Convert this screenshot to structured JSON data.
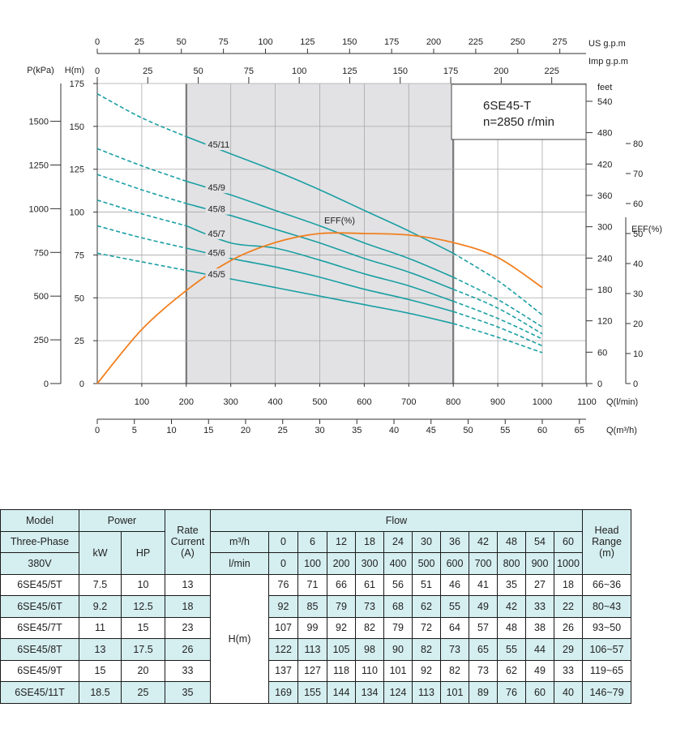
{
  "chart_data": {
    "type": "line",
    "model_label": "6SE45-T",
    "speed_label": "n=2850 r/min",
    "axes": {
      "x_lpm": {
        "range": [
          0,
          1100
        ],
        "ticks": [
          100,
          200,
          300,
          400,
          500,
          600,
          700,
          800,
          900,
          1000,
          1100
        ],
        "unit": "Q(l/min)"
      },
      "x_m3h": {
        "range": [
          0,
          66
        ],
        "ticks": [
          0,
          5,
          10,
          15,
          20,
          25,
          30,
          35,
          40,
          45,
          50,
          55,
          60,
          65
        ],
        "unit": "Q(m³/h)"
      },
      "x_usgpm": {
        "range": [
          0,
          290.6
        ],
        "ticks": [
          0,
          25,
          50,
          75,
          100,
          125,
          150,
          175,
          200,
          225,
          250,
          275
        ],
        "unit": "US  g.p.m"
      },
      "x_impgpm": {
        "range": [
          0,
          242
        ],
        "ticks": [
          0,
          25,
          50,
          75,
          100,
          125,
          150,
          175,
          200,
          225
        ],
        "unit": "Imp  g.p.m"
      },
      "y_head_m": {
        "range": [
          0,
          175
        ],
        "ticks": [
          0,
          25,
          50,
          75,
          100,
          125,
          150,
          175
        ],
        "unit": "H(m)"
      },
      "y_kpa": {
        "range": [
          0,
          1716
        ],
        "ticks": [
          0,
          250,
          500,
          750,
          1000,
          1250,
          1500
        ],
        "unit": "P(kPa)"
      },
      "y_feet": {
        "range": [
          0,
          574
        ],
        "ticks": [
          0,
          60,
          120,
          180,
          240,
          300,
          360,
          420,
          480,
          540
        ],
        "unit": "feet"
      },
      "y_eff": {
        "range": [
          0,
          100
        ],
        "ticks": [
          0,
          10,
          20,
          30,
          40,
          50,
          60,
          70,
          80
        ],
        "unit": "EFF(%)"
      }
    },
    "recommended_range_lpm": [
      200,
      800
    ],
    "series": [
      {
        "name": "45/11",
        "x_lpm": [
          0,
          100,
          200,
          300,
          400,
          500,
          600,
          700,
          800,
          900,
          1000
        ],
        "head_m": [
          169,
          155,
          144,
          134,
          124,
          113,
          101,
          89,
          76,
          60,
          40
        ]
      },
      {
        "name": "45/9",
        "x_lpm": [
          0,
          100,
          200,
          300,
          400,
          500,
          600,
          700,
          800,
          900,
          1000
        ],
        "head_m": [
          137,
          127,
          118,
          110,
          101,
          92,
          82,
          73,
          62,
          49,
          33
        ]
      },
      {
        "name": "45/8",
        "x_lpm": [
          0,
          100,
          200,
          300,
          400,
          500,
          600,
          700,
          800,
          900,
          1000
        ],
        "head_m": [
          122,
          113,
          105,
          98,
          90,
          82,
          73,
          65,
          55,
          44,
          29
        ]
      },
      {
        "name": "45/7",
        "x_lpm": [
          0,
          100,
          200,
          300,
          400,
          500,
          600,
          700,
          800,
          900,
          1000
        ],
        "head_m": [
          107,
          99,
          92,
          82,
          79,
          72,
          64,
          57,
          48,
          38,
          26
        ]
      },
      {
        "name": "45/6",
        "x_lpm": [
          0,
          100,
          200,
          300,
          400,
          500,
          600,
          700,
          800,
          900,
          1000
        ],
        "head_m": [
          92,
          85,
          79,
          73,
          68,
          62,
          55,
          49,
          42,
          33,
          22
        ]
      },
      {
        "name": "45/5",
        "x_lpm": [
          0,
          100,
          200,
          300,
          400,
          500,
          600,
          700,
          800,
          900,
          1000
        ],
        "head_m": [
          76,
          71,
          66,
          61,
          56,
          51,
          46,
          41,
          35,
          27,
          18
        ]
      }
    ],
    "efficiency": {
      "name": "EFF(%)",
      "x_lpm": [
        0,
        100,
        200,
        300,
        400,
        500,
        600,
        700,
        800,
        900,
        1000
      ],
      "eff_pct": [
        0,
        18,
        31,
        41,
        47,
        50,
        50,
        49.5,
        47,
        42,
        32
      ]
    },
    "colors": {
      "head": "#1a9fa3",
      "efficiency": "#f08020",
      "range_shade": "#e2e2e4",
      "grid": "#a8a8a8"
    }
  },
  "table": {
    "headers": {
      "model": "Model",
      "power": "Power",
      "rate_current": "Rate Current (A)",
      "flow": "Flow",
      "head_range": "Head Range (m)",
      "three_phase": "Three-Phase",
      "voltage": "380V",
      "kw": "kW",
      "hp": "HP",
      "m3h": "m³/h",
      "lmin": "l/min",
      "hm": "H(m)"
    },
    "flow_m3h": [
      "0",
      "6",
      "12",
      "18",
      "24",
      "30",
      "36",
      "42",
      "48",
      "54",
      "60"
    ],
    "flow_lmin": [
      "0",
      "100",
      "200",
      "300",
      "400",
      "500",
      "600",
      "700",
      "800",
      "900",
      "1000"
    ],
    "rows": [
      {
        "model": "6SE45/5T",
        "kw": "7.5",
        "hp": "10",
        "current": "13",
        "heads": [
          "76",
          "71",
          "66",
          "61",
          "56",
          "51",
          "46",
          "41",
          "35",
          "27",
          "18"
        ],
        "range": "66~36"
      },
      {
        "model": "6SE45/6T",
        "kw": "9.2",
        "hp": "12.5",
        "current": "18",
        "heads": [
          "92",
          "85",
          "79",
          "73",
          "68",
          "62",
          "55",
          "49",
          "42",
          "33",
          "22"
        ],
        "range": "80~43"
      },
      {
        "model": "6SE45/7T",
        "kw": "11",
        "hp": "15",
        "current": "23",
        "heads": [
          "107",
          "99",
          "92",
          "82",
          "79",
          "72",
          "64",
          "57",
          "48",
          "38",
          "26"
        ],
        "range": "93~50"
      },
      {
        "model": "6SE45/8T",
        "kw": "13",
        "hp": "17.5",
        "current": "26",
        "heads": [
          "122",
          "113",
          "105",
          "98",
          "90",
          "82",
          "73",
          "65",
          "55",
          "44",
          "29"
        ],
        "range": "106~57"
      },
      {
        "model": "6SE45/9T",
        "kw": "15",
        "hp": "20",
        "current": "33",
        "heads": [
          "137",
          "127",
          "118",
          "110",
          "101",
          "92",
          "82",
          "73",
          "62",
          "49",
          "33"
        ],
        "range": "119~65"
      },
      {
        "model": "6SE45/11T",
        "kw": "18.5",
        "hp": "25",
        "current": "35",
        "heads": [
          "169",
          "155",
          "144",
          "134",
          "124",
          "113",
          "101",
          "89",
          "76",
          "60",
          "40"
        ],
        "range": "146~79"
      }
    ]
  }
}
